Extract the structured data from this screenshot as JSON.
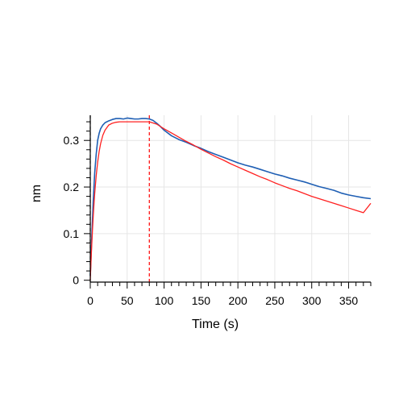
{
  "chart_data": {
    "type": "line",
    "xlabel": "Time (s)",
    "ylabel": "nm",
    "xlim": [
      0,
      380
    ],
    "ylim": [
      -0.004,
      0.354
    ],
    "grid": true,
    "x_ticks": [
      0,
      50,
      100,
      150,
      200,
      250,
      300,
      350
    ],
    "x_tick_labels": [
      "0",
      "50",
      "100",
      "150",
      "200",
      "250",
      "300",
      "350"
    ],
    "y_ticks": [
      0,
      0.1,
      0.2,
      0.3
    ],
    "y_tick_labels": [
      "0",
      "0.1",
      "0.2",
      "0.3"
    ],
    "vertical_markers": [
      {
        "x": 0,
        "color": "#333333",
        "style": "dashed"
      },
      {
        "x": 80,
        "color": "#ff0000",
        "style": "dashed"
      }
    ],
    "series": [
      {
        "role": "measured",
        "color": "#1f5fb4",
        "x": [
          0,
          1,
          2,
          3,
          4,
          5,
          6,
          8,
          10,
          12,
          14,
          17,
          20,
          25,
          30,
          35,
          40,
          45,
          50,
          55,
          60,
          65,
          70,
          75,
          80,
          85,
          90,
          95,
          100,
          110,
          120,
          130,
          140,
          150,
          160,
          170,
          180,
          190,
          200,
          210,
          220,
          230,
          240,
          250,
          260,
          270,
          280,
          290,
          300,
          310,
          320,
          330,
          340,
          350,
          360,
          370,
          380
        ],
        "y": [
          0.01,
          0.05,
          0.09,
          0.13,
          0.17,
          0.2,
          0.23,
          0.27,
          0.3,
          0.315,
          0.325,
          0.333,
          0.338,
          0.342,
          0.345,
          0.347,
          0.347,
          0.346,
          0.348,
          0.347,
          0.346,
          0.346,
          0.347,
          0.347,
          0.346,
          0.343,
          0.337,
          0.33,
          0.322,
          0.31,
          0.302,
          0.296,
          0.289,
          0.283,
          0.276,
          0.27,
          0.264,
          0.258,
          0.252,
          0.247,
          0.243,
          0.238,
          0.233,
          0.228,
          0.224,
          0.219,
          0.215,
          0.211,
          0.206,
          0.201,
          0.197,
          0.193,
          0.187,
          0.183,
          0.18,
          0.177,
          0.175
        ]
      },
      {
        "role": "fit",
        "color": "#ff2020",
        "x": [
          0,
          1,
          2,
          3,
          4,
          5,
          6,
          8,
          10,
          12,
          14,
          17,
          20,
          25,
          30,
          35,
          40,
          45,
          50,
          60,
          70,
          80,
          90,
          100,
          110,
          120,
          130,
          140,
          150,
          160,
          170,
          180,
          190,
          200,
          210,
          220,
          230,
          240,
          250,
          260,
          270,
          280,
          290,
          300,
          310,
          320,
          330,
          340,
          350,
          360,
          370,
          380
        ],
        "y": [
          0.0,
          0.04,
          0.076,
          0.108,
          0.137,
          0.163,
          0.186,
          0.224,
          0.253,
          0.276,
          0.293,
          0.311,
          0.322,
          0.333,
          0.337,
          0.339,
          0.34,
          0.34,
          0.34,
          0.34,
          0.34,
          0.34,
          0.335,
          0.325,
          0.316,
          0.307,
          0.298,
          0.29,
          0.281,
          0.273,
          0.265,
          0.258,
          0.25,
          0.243,
          0.236,
          0.229,
          0.222,
          0.216,
          0.209,
          0.203,
          0.197,
          0.192,
          0.186,
          0.18,
          0.175,
          0.17,
          0.165,
          0.16,
          0.155,
          0.15,
          0.145,
          0.165
        ]
      }
    ]
  }
}
